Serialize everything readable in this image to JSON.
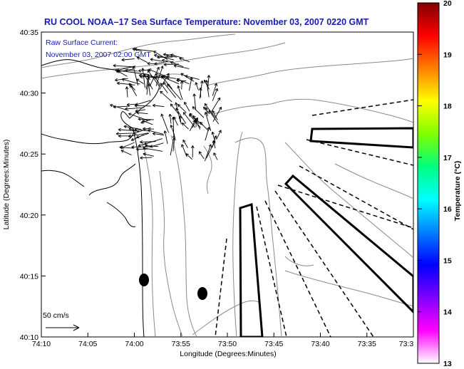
{
  "title": "RU COOL  NOAA–17  Sea Surface Temperature:  November 03, 2007 0220 GMT",
  "annotation": {
    "line1": "Raw Surface Current:",
    "line2": "November 03, 2007 02:00 GMT"
  },
  "scale_label": "50 cm/s",
  "axes": {
    "xlabel": "Longitude (Degrees:Minutes)",
    "ylabel": "Latitude (Degrees:Minutes)",
    "xticks": [
      "74:10",
      "74:05",
      "74:00",
      "73:55",
      "73:50",
      "73:45",
      "73:40",
      "73:35",
      "73:3"
    ],
    "yticks": [
      "40:35",
      "40:30",
      "40:25",
      "40:20",
      "40:15",
      "40:10"
    ]
  },
  "colorbar": {
    "label": "Temperature (°C)",
    "ticks": [
      "20",
      "19",
      "18",
      "17",
      "16",
      "15",
      "14",
      "13"
    ],
    "colors": [
      "#800000",
      "#ff0000",
      "#ff8000",
      "#ffff00",
      "#80ff00",
      "#00ff80",
      "#00ffff",
      "#0080ff",
      "#0000ff",
      "#8000ff",
      "#ff00ff",
      "#ffffff"
    ]
  },
  "colors": {
    "title": "#1a1ab0",
    "contour": "#888888",
    "coast": "#000000"
  }
}
